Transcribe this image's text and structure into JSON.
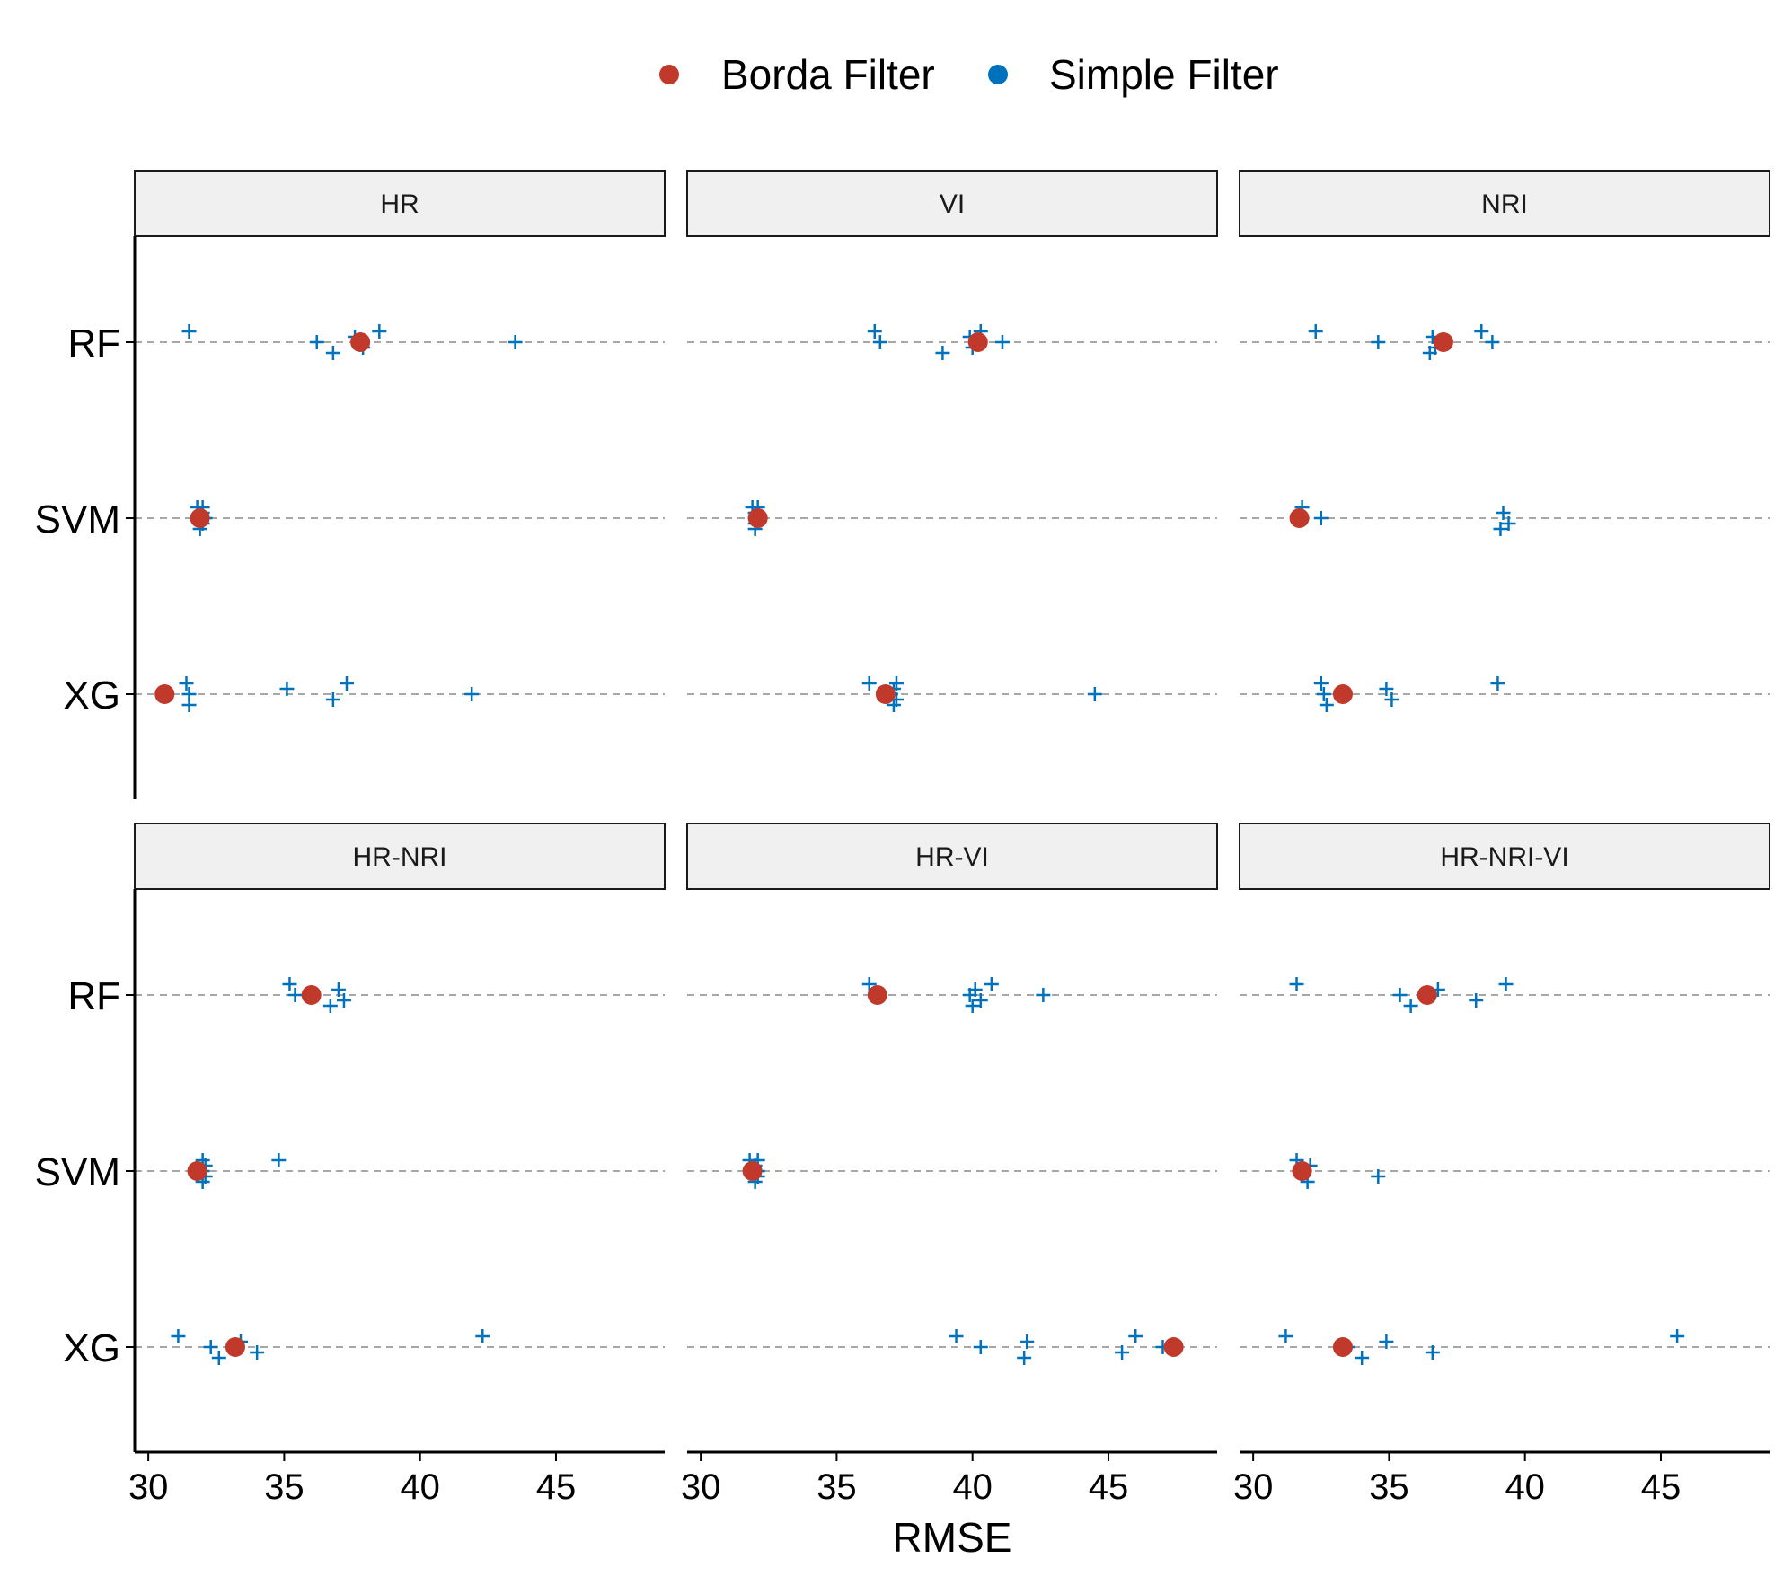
{
  "chart_data": {
    "type": "scatter",
    "xlabel": "RMSE",
    "ylabel": "",
    "xlim": [
      29.5,
      49
    ],
    "xticks": [
      30,
      35,
      40,
      45
    ],
    "y_categories": [
      "RF",
      "SVM",
      "XG"
    ],
    "grid": "horizontal dashed lines at each category",
    "legend": {
      "position": "top",
      "entries": [
        {
          "name": "Borda Filter",
          "color": "#c0392b",
          "marker": "circle"
        },
        {
          "name": "Simple Filter",
          "color": "#0072bd",
          "marker": "cross"
        }
      ]
    },
    "panels": [
      {
        "label": "HR",
        "borda": {
          "RF": 37.8,
          "SVM": 31.9,
          "XG": 30.6
        },
        "simple": {
          "RF": [
            31.5,
            36.2,
            36.8,
            37.6,
            37.9,
            38.5,
            43.5
          ],
          "SVM": [
            31.8,
            31.9,
            31.9,
            32.0,
            32.0,
            32.0,
            32.1
          ],
          "XG": [
            31.4,
            31.5,
            31.5,
            35.1,
            36.8,
            37.3,
            41.9
          ]
        }
      },
      {
        "label": "VI",
        "borda": {
          "RF": 40.2,
          "SVM": 32.1,
          "XG": 36.8
        },
        "simple": {
          "RF": [
            36.4,
            36.6,
            38.9,
            39.9,
            40.0,
            40.3,
            41.1
          ],
          "SVM": [
            31.9,
            32.0,
            32.0,
            32.0,
            32.0,
            32.1,
            32.1
          ],
          "XG": [
            36.2,
            37.0,
            37.1,
            37.1,
            37.2,
            37.2,
            44.5
          ]
        }
      },
      {
        "label": "NRI",
        "borda": {
          "RF": 37.0,
          "SVM": 31.7,
          "XG": 33.3
        },
        "simple": {
          "RF": [
            32.3,
            34.6,
            36.5,
            36.6,
            36.7,
            38.4,
            38.8
          ],
          "SVM": [
            31.8,
            32.5,
            39.1,
            39.2,
            39.4
          ],
          "XG": [
            32.5,
            32.6,
            32.7,
            34.9,
            35.1,
            39.0
          ]
        }
      },
      {
        "label": "HR-NRI",
        "borda": {
          "RF": 36.0,
          "SVM": 31.8,
          "XG": 33.2
        },
        "simple": {
          "RF": [
            35.2,
            35.4,
            36.7,
            37.0,
            37.2
          ],
          "SVM": [
            32.0,
            32.0,
            32.0,
            32.1,
            32.1,
            34.8
          ],
          "XG": [
            31.1,
            32.3,
            32.6,
            33.4,
            34.0,
            42.3
          ]
        }
      },
      {
        "label": "HR-VI",
        "borda": {
          "RF": 36.5,
          "SVM": 31.9,
          "XG": 47.4
        },
        "simple": {
          "RF": [
            36.2,
            39.9,
            40.0,
            40.1,
            40.3,
            40.7,
            42.6
          ],
          "SVM": [
            31.8,
            31.9,
            32.0,
            32.0,
            32.1,
            32.1,
            32.1
          ],
          "XG": [
            39.4,
            40.3,
            41.9,
            42.0,
            45.5,
            46.0,
            47.0
          ]
        }
      },
      {
        "label": "HR-NRI-VI",
        "borda": {
          "RF": 36.4,
          "SVM": 31.8,
          "XG": 33.3
        },
        "simple": {
          "RF": [
            31.6,
            35.4,
            35.8,
            36.8,
            38.2,
            39.3
          ],
          "SVM": [
            31.6,
            31.9,
            32.0,
            32.1,
            34.6
          ],
          "XG": [
            31.2,
            33.5,
            34.0,
            34.9,
            36.6,
            45.6
          ]
        }
      }
    ]
  }
}
